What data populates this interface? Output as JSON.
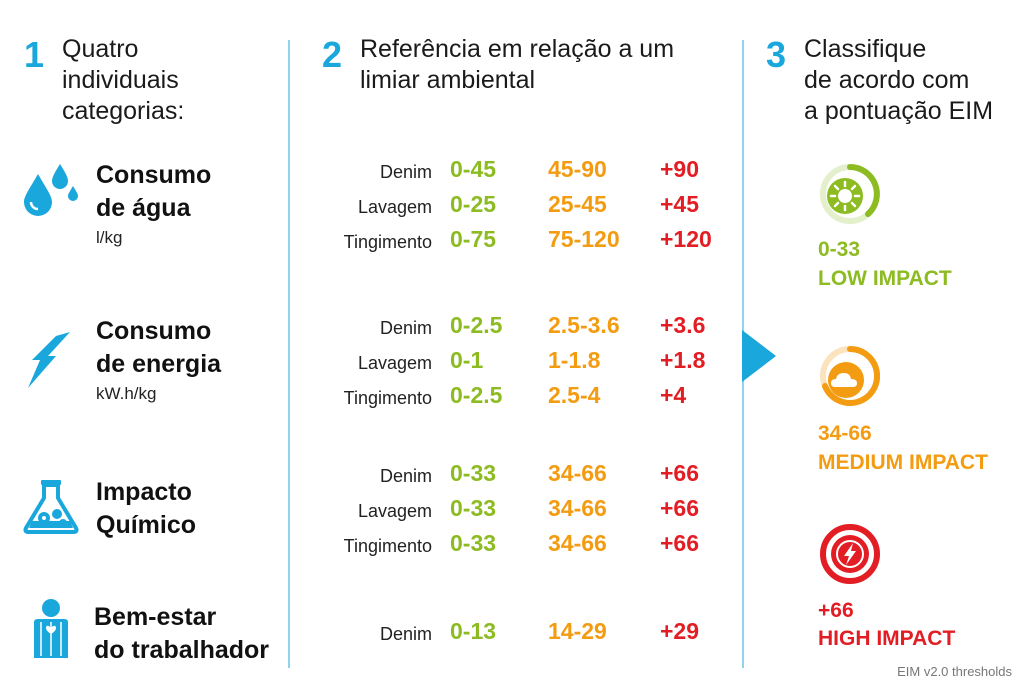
{
  "colors": {
    "blue": "#1aa7dc",
    "low": "#8cbb22",
    "medium": "#f39c12",
    "high": "#e21d24"
  },
  "steps": [
    {
      "num": "1",
      "title": [
        "Quatro",
        "individuais",
        "categorias:"
      ]
    },
    {
      "num": "2",
      "title": [
        "Referência em relação a um",
        "limiar ambiental"
      ]
    },
    {
      "num": "3",
      "title": [
        "Classifique",
        "de acordo com",
        "a pontuação EIM"
      ]
    }
  ],
  "categories": [
    {
      "icon": "water-drops-icon",
      "name": [
        "Consumo",
        "de água"
      ],
      "unit": "l/kg",
      "rows": [
        {
          "label": "Denim",
          "low": "0-45",
          "medium": "45-90",
          "high": "+90"
        },
        {
          "label": "Lavagem",
          "low": "0-25",
          "medium": "25-45",
          "high": "+45"
        },
        {
          "label": "Tingimento",
          "low": "0-75",
          "medium": "75-120",
          "high": "+120"
        }
      ]
    },
    {
      "icon": "lightning-bolt-icon",
      "name": [
        "Consumo",
        "de energia"
      ],
      "unit": "kW.h/kg",
      "rows": [
        {
          "label": "Denim",
          "low": "0-2.5",
          "medium": "2.5-3.6",
          "high": "+3.6"
        },
        {
          "label": "Lavagem",
          "low": "0-1",
          "medium": "1-1.8",
          "high": "+1.8"
        },
        {
          "label": "Tingimento",
          "low": "0-2.5",
          "medium": "2.5-4",
          "high": "+4"
        }
      ]
    },
    {
      "icon": "chemical-flask-icon",
      "name": [
        "Impacto",
        "Químico"
      ],
      "unit": "",
      "rows": [
        {
          "label": "Denim",
          "low": "0-33",
          "medium": "34-66",
          "high": "+66"
        },
        {
          "label": "Lavagem",
          "low": "0-33",
          "medium": "34-66",
          "high": "+66"
        },
        {
          "label": "Tingimento",
          "low": "0-33",
          "medium": "34-66",
          "high": "+66"
        }
      ]
    },
    {
      "icon": "worker-icon",
      "name": [
        "Bem-estar",
        "do trabalhador"
      ],
      "unit": "",
      "rows": [
        {
          "label": "Denim",
          "low": "0-13",
          "medium": "14-29",
          "high": "+29"
        }
      ]
    }
  ],
  "impacts": [
    {
      "icon": "sun-gauge-icon",
      "score": "0-33",
      "label": "LOW IMPACT",
      "level": 0.33
    },
    {
      "icon": "cloud-gauge-icon",
      "score": "34-66",
      "label": "MEDIUM IMPACT",
      "level": 0.66
    },
    {
      "icon": "bolt-gauge-icon",
      "score": "+66",
      "label": "HIGH IMPACT",
      "level": 1.0
    }
  ],
  "footer": "EIM v2.0 thresholds"
}
